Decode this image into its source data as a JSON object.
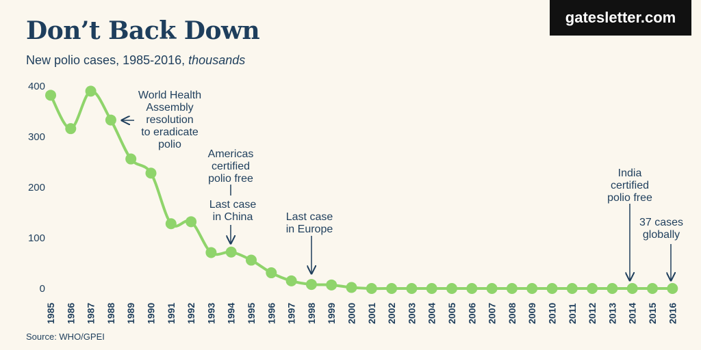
{
  "header": {
    "title": "Don’t Back Down",
    "subtitle_main": "New polio cases, 1985-2016, ",
    "subtitle_unit": "thousands",
    "brand": "gatesletter.com"
  },
  "footer": {
    "source": "Source: WHO/GPEI"
  },
  "colors": {
    "line": "#8fd46b",
    "text": "#1e3e5c",
    "background": "#fbf7ee",
    "brand_bg": "#111111"
  },
  "chart_data": {
    "type": "line",
    "title": "Don’t Back Down",
    "subtitle": "New polio cases, 1985-2016, thousands",
    "xlabel": "",
    "ylabel": "",
    "ylim": [
      0,
      400
    ],
    "yticks": [
      0,
      100,
      200,
      300,
      400
    ],
    "x": [
      1985,
      1986,
      1987,
      1988,
      1989,
      1990,
      1991,
      1992,
      1993,
      1994,
      1995,
      1996,
      1997,
      1998,
      1999,
      2000,
      2001,
      2002,
      2003,
      2004,
      2005,
      2006,
      2007,
      2008,
      2009,
      2010,
      2011,
      2012,
      2013,
      2014,
      2015,
      2016
    ],
    "series": [
      {
        "name": "New polio cases (thousands)",
        "values": [
          382,
          316,
          390,
          333,
          256,
          228,
          128,
          132,
          71,
          72,
          56,
          31,
          15,
          8,
          7,
          2,
          0,
          0,
          0,
          0,
          0,
          0,
          0,
          0,
          0,
          0,
          0,
          0,
          0,
          0,
          0,
          0
        ]
      }
    ],
    "annotations": [
      {
        "year": 1988,
        "lines": [
          "World Health",
          "Assembly",
          "resolution",
          "to eradicate",
          "polio"
        ]
      },
      {
        "year": 1994,
        "lines": [
          "Americas",
          "certified",
          "polio free"
        ]
      },
      {
        "year": 1994,
        "lines": [
          "Last case",
          "in China"
        ]
      },
      {
        "year": 1998,
        "lines": [
          "Last case",
          "in Europe"
        ]
      },
      {
        "year": 2014,
        "lines": [
          "India",
          "certified",
          "polio free"
        ]
      },
      {
        "year": 2016,
        "lines": [
          "37 cases",
          "globally"
        ]
      }
    ]
  }
}
